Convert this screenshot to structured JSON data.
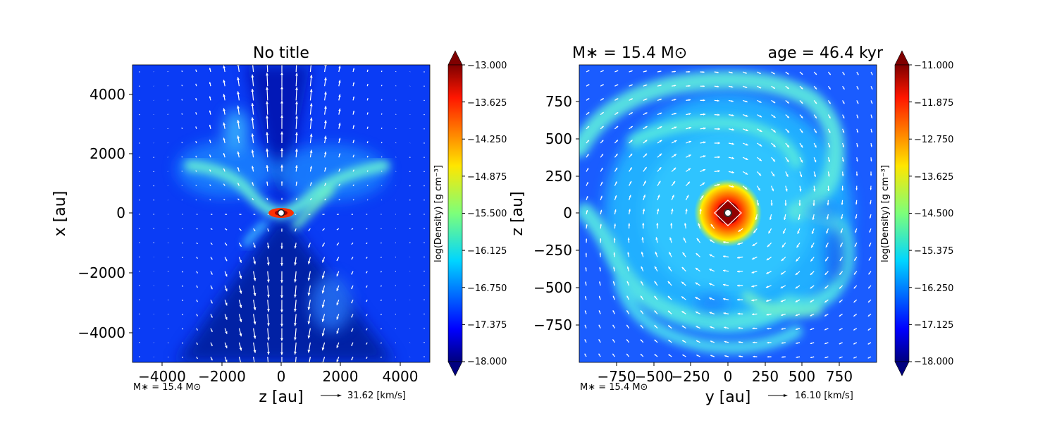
{
  "chart_data": [
    {
      "type": "heatmap",
      "title": "No title",
      "xlabel": "z [au]",
      "ylabel": "x [au]",
      "xlim": [
        -5000,
        5000
      ],
      "ylim": [
        -5000,
        5000
      ],
      "xticks": [
        "−4000",
        "−2000",
        "0",
        "2000",
        "4000"
      ],
      "xtick_values": [
        -4000,
        -2000,
        0,
        2000,
        4000
      ],
      "yticks": [
        "4000",
        "2000",
        "0",
        "−2000",
        "−4000"
      ],
      "ytick_values": [
        4000,
        2000,
        0,
        -2000,
        -4000
      ],
      "colorbar": {
        "label": "log(Density) [g cm⁻³]",
        "range": [
          -18.0,
          -13.0
        ],
        "ticks": [
          "−13.000",
          "−13.625",
          "−14.250",
          "−14.875",
          "−15.500",
          "−16.125",
          "−16.750",
          "−17.375",
          "−18.000"
        ],
        "tick_values": [
          -13.0,
          -13.625,
          -14.25,
          -14.875,
          -15.5,
          -16.125,
          -16.75,
          -17.375,
          -18.0
        ]
      },
      "star_label": "M∗ = 15.4 M⊙",
      "velocity_key": "31.62 [km/s]",
      "velocity_key_value": 31.62
    },
    {
      "type": "heatmap",
      "title_left": "M∗ = 15.4 M⊙",
      "title_right": "age = 46.4 kyr",
      "xlabel": "y [au]",
      "ylabel": "z [au]",
      "xlim": [
        -1000,
        1000
      ],
      "ylim": [
        -1000,
        1000
      ],
      "xticks": [
        "−750",
        "−500",
        "−250",
        "0",
        "250",
        "500",
        "750"
      ],
      "xtick_values": [
        -750,
        -500,
        -250,
        0,
        250,
        500,
        750
      ],
      "yticks": [
        "750",
        "500",
        "250",
        "0",
        "−250",
        "−500",
        "−750"
      ],
      "ytick_values": [
        750,
        500,
        250,
        0,
        -250,
        -500,
        -750
      ],
      "colorbar": {
        "label": "log(Density) [g cm⁻³]",
        "range": [
          -18.0,
          -11.0
        ],
        "ticks": [
          "−11.000",
          "−11.875",
          "−12.750",
          "−13.625",
          "−14.500",
          "−15.375",
          "−16.250",
          "−17.125",
          "−18.000"
        ],
        "tick_values": [
          -11.0,
          -11.875,
          -12.75,
          -13.625,
          -14.5,
          -15.375,
          -16.25,
          -17.125,
          -18.0
        ]
      },
      "star_label": "M∗ = 15.4 M⊙",
      "velocity_key": "16.10 [km/s]",
      "velocity_key_value": 16.1
    }
  ]
}
